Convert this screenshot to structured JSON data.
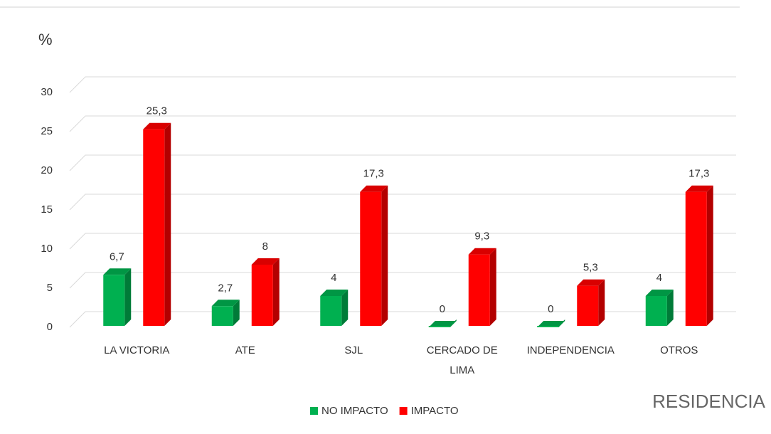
{
  "chart_data": {
    "type": "bar3d",
    "y_label": "%",
    "x_label": "RESIDENCIA",
    "categories": [
      "LA VICTORIA",
      "ATE",
      "SJL",
      "CERCADO DE LIMA",
      "INDEPENDENCIA",
      "OTROS"
    ],
    "series": [
      {
        "name": "NO IMPACTO",
        "color": "#00b050",
        "values": [
          6.7,
          2.7,
          4,
          0,
          0,
          4
        ],
        "value_labels": [
          "6,7",
          "2,7",
          "4",
          "0",
          "0",
          "4"
        ]
      },
      {
        "name": "IMPACTO",
        "color": "#ff0000",
        "values": [
          25.3,
          8,
          17.3,
          9.3,
          5.3,
          17.3
        ],
        "value_labels": [
          "25,3",
          "8",
          "17,3",
          "9,3",
          "5,3",
          "17,3"
        ]
      }
    ],
    "ylim": [
      0,
      30
    ],
    "yticks": [
      0,
      5,
      10,
      15,
      20,
      25,
      30
    ],
    "grid": true,
    "legend": "bottom"
  }
}
